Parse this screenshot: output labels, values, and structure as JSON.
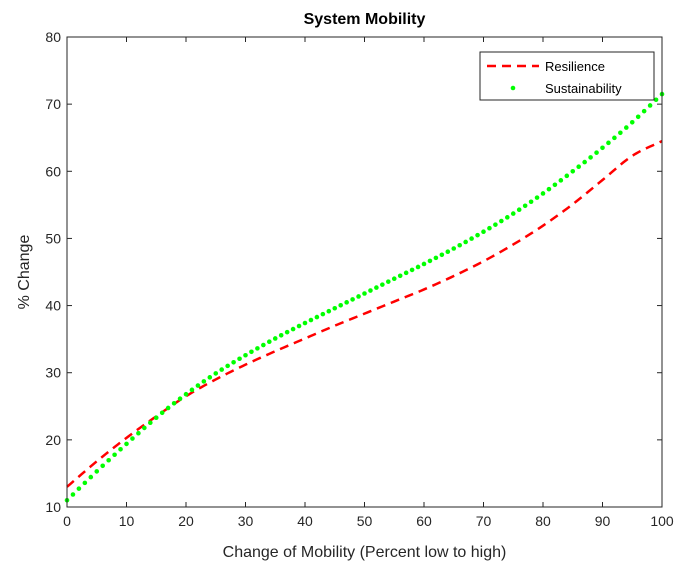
{
  "chart_data": {
    "type": "line",
    "title": "System Mobility",
    "xlabel": "Change of Mobility (Percent low to high)",
    "ylabel": "% Change",
    "xlim": [
      0,
      100
    ],
    "ylim": [
      10,
      80
    ],
    "xticks": [
      0,
      10,
      20,
      30,
      40,
      50,
      60,
      70,
      80,
      90,
      100
    ],
    "yticks": [
      10,
      20,
      30,
      40,
      50,
      60,
      70,
      80
    ],
    "grid": false,
    "legend_position": "top-right",
    "x": [
      0,
      5,
      10,
      15,
      20,
      25,
      30,
      35,
      40,
      45,
      50,
      55,
      60,
      65,
      70,
      75,
      80,
      85,
      90,
      95,
      100
    ],
    "series": [
      {
        "name": "Resilience",
        "style": "dashed",
        "color": "#ff0000",
        "values": [
          13.0,
          16.8,
          20.3,
          23.5,
          26.5,
          29.0,
          31.2,
          33.2,
          35.1,
          37.0,
          38.8,
          40.6,
          42.4,
          44.4,
          46.6,
          49.1,
          51.9,
          55.1,
          58.7,
          62.3,
          64.5
        ]
      },
      {
        "name": "Sustainability",
        "style": "dotted",
        "color": "#00ff00",
        "values": [
          11.0,
          15.3,
          19.4,
          23.3,
          26.8,
          29.9,
          32.6,
          35.1,
          37.4,
          39.6,
          41.8,
          44.0,
          46.2,
          48.5,
          51.0,
          53.7,
          56.7,
          60.0,
          63.5,
          67.3,
          71.5
        ]
      }
    ]
  }
}
